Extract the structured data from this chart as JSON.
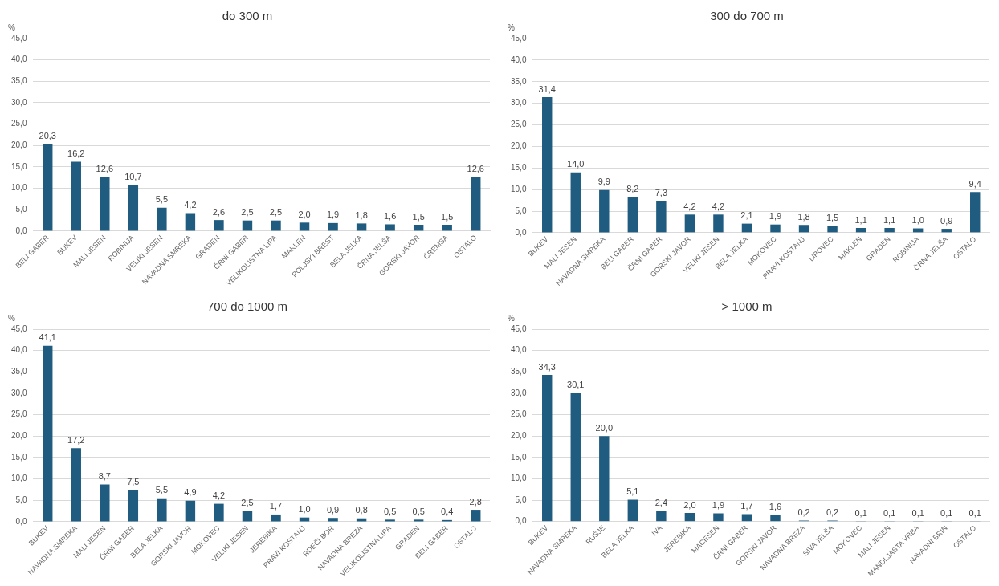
{
  "chart_data": [
    {
      "type": "bar",
      "title": "do 300 m",
      "ylabel": "%",
      "categories": [
        "BELI GABER",
        "BUKEV",
        "MALI JESEN",
        "ROBINIJA",
        "VELIKI JESEN",
        "NAVADNA SMREKA",
        "GRADEN",
        "ČRNI GABER",
        "VELIKOLISTNA LIPA",
        "MAKLEN",
        "POLJSKI BREST",
        "BELA JELKA",
        "ČRNA JELŠA",
        "GORSKI JAVOR",
        "ČREMSA",
        "OSTALO"
      ],
      "values": [
        20.3,
        16.2,
        12.6,
        10.7,
        5.5,
        4.2,
        2.6,
        2.5,
        2.5,
        2.0,
        1.9,
        1.8,
        1.6,
        1.5,
        1.5,
        12.6
      ],
      "value_labels": [
        "20,3",
        "16,2",
        "12,6",
        "10,7",
        "5,5",
        "4,2",
        "2,6",
        "2,5",
        "2,5",
        "2,0",
        "1,9",
        "1,8",
        "1,6",
        "1,5",
        "1,5",
        "12,6"
      ],
      "color": "#1f5c80",
      "ylim": [
        0,
        45
      ],
      "yticks": [
        {
          "value": 0,
          "label": "0,0"
        },
        {
          "value": 5,
          "label": "5,0"
        },
        {
          "value": 10,
          "label": "10,0"
        },
        {
          "value": 15,
          "label": "15,0"
        },
        {
          "value": 20,
          "label": "20,0"
        },
        {
          "value": 25,
          "label": "25,0"
        },
        {
          "value": 30,
          "label": "30,0"
        },
        {
          "value": 35,
          "label": "35,0"
        },
        {
          "value": 40,
          "label": "40,0"
        },
        {
          "value": 45,
          "label": "45,0"
        }
      ],
      "grid": "y",
      "legend": false
    },
    {
      "type": "bar",
      "title": "300 do 700 m",
      "ylabel": "%",
      "categories": [
        "BUKEV",
        "MALI JESEN",
        "NAVADNA SMREKA",
        "BELI GABER",
        "ČRNI GABER",
        "GORSKI JAVOR",
        "VELIKI JESEN",
        "BELA JELKA",
        "MOKOVEC",
        "PRAVI KOSTANJ",
        "LIPOVEC",
        "MAKLEN",
        "GRADEN",
        "ROBINIJA",
        "ČRNA JELŠA",
        "OSTALO"
      ],
      "values": [
        31.4,
        14.0,
        9.9,
        8.2,
        7.3,
        4.2,
        4.2,
        2.1,
        1.9,
        1.8,
        1.5,
        1.1,
        1.1,
        1.0,
        0.9,
        9.4
      ],
      "value_labels": [
        "31,4",
        "14,0",
        "9,9",
        "8,2",
        "7,3",
        "4,2",
        "4,2",
        "2,1",
        "1,9",
        "1,8",
        "1,5",
        "1,1",
        "1,1",
        "1,0",
        "0,9",
        "9,4"
      ],
      "color": "#1f5c80",
      "ylim": [
        0,
        45
      ],
      "yticks": [
        {
          "value": 0,
          "label": "0,0"
        },
        {
          "value": 5,
          "label": "5,0"
        },
        {
          "value": 10,
          "label": "10,0"
        },
        {
          "value": 15,
          "label": "15,0"
        },
        {
          "value": 20,
          "label": "20,0"
        },
        {
          "value": 25,
          "label": "25,0"
        },
        {
          "value": 30,
          "label": "30,0"
        },
        {
          "value": 35,
          "label": "35,0"
        },
        {
          "value": 40,
          "label": "40,0"
        },
        {
          "value": 45,
          "label": "45,0"
        }
      ],
      "grid": "y",
      "legend": false
    },
    {
      "type": "bar",
      "title": "700 do 1000 m",
      "ylabel": "%",
      "categories": [
        "BUKEV",
        "NAVADNA SMREKA",
        "MALI JESEN",
        "ČRNI GABER",
        "BELA JELKA",
        "GORSKI JAVOR",
        "MOKOVEC",
        "VELIKI JESEN",
        "JEREBIKA",
        "PRAVI KOSTANJ",
        "RDEČI BOR",
        "NAVADNA BREZA",
        "VELIKOLISTNA LIPA",
        "GRADEN",
        "BELI GABER",
        "OSTALO"
      ],
      "values": [
        41.1,
        17.2,
        8.7,
        7.5,
        5.5,
        4.9,
        4.2,
        2.5,
        1.7,
        1.0,
        0.9,
        0.8,
        0.5,
        0.5,
        0.4,
        2.8
      ],
      "value_labels": [
        "41,1",
        "17,2",
        "8,7",
        "7,5",
        "5,5",
        "4,9",
        "4,2",
        "2,5",
        "1,7",
        "1,0",
        "0,9",
        "0,8",
        "0,5",
        "0,5",
        "0,4",
        "2,8"
      ],
      "color": "#1f5c80",
      "ylim": [
        0,
        45
      ],
      "yticks": [
        {
          "value": 0,
          "label": "0,0"
        },
        {
          "value": 5,
          "label": "5,0"
        },
        {
          "value": 10,
          "label": "10,0"
        },
        {
          "value": 15,
          "label": "15,0"
        },
        {
          "value": 20,
          "label": "20,0"
        },
        {
          "value": 25,
          "label": "25,0"
        },
        {
          "value": 30,
          "label": "30,0"
        },
        {
          "value": 35,
          "label": "35,0"
        },
        {
          "value": 40,
          "label": "40,0"
        },
        {
          "value": 45,
          "label": "45,0"
        }
      ],
      "grid": "y",
      "legend": false
    },
    {
      "type": "bar",
      "title": "> 1000 m",
      "ylabel": "%",
      "categories": [
        "BUKEV",
        "NAVADNA SMREKA",
        "RUŠJE",
        "BELA JELKA",
        "IVA",
        "JEREBIKA",
        "MACESEN",
        "ČRNI GABER",
        "GORSKI JAVOR",
        "NAVADNA BREZA",
        "SIVA JELŠA",
        "MOKOVEC",
        "MALI JESEN",
        "MANDLJASTA VRBA",
        "NAVADNI BRIN",
        "OSTALO"
      ],
      "values": [
        34.3,
        30.1,
        20.0,
        5.1,
        2.4,
        2.0,
        1.9,
        1.7,
        1.6,
        0.2,
        0.2,
        0.1,
        0.1,
        0.1,
        0.1,
        0.1
      ],
      "value_labels": [
        "34,3",
        "30,1",
        "20,0",
        "5,1",
        "2,4",
        "2,0",
        "1,9",
        "1,7",
        "1,6",
        "0,2",
        "0,2",
        "0,1",
        "0,1",
        "0,1",
        "0,1",
        "0,1"
      ],
      "color": "#1f5c80",
      "ylim": [
        0,
        45
      ],
      "yticks": [
        {
          "value": 0,
          "label": "0,0"
        },
        {
          "value": 5,
          "label": "5,0"
        },
        {
          "value": 10,
          "label": "10,0"
        },
        {
          "value": 15,
          "label": "15,0"
        },
        {
          "value": 20,
          "label": "20,0"
        },
        {
          "value": 25,
          "label": "25,0"
        },
        {
          "value": 30,
          "label": "30,0"
        },
        {
          "value": 35,
          "label": "35,0"
        },
        {
          "value": 40,
          "label": "40,0"
        },
        {
          "value": 45,
          "label": "45,0"
        }
      ],
      "grid": "y",
      "legend": false
    }
  ]
}
